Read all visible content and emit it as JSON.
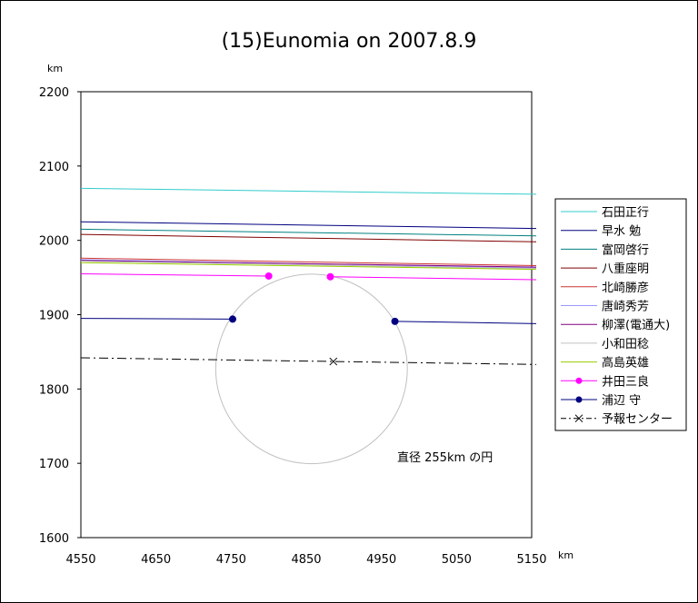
{
  "chart_data": {
    "type": "line",
    "title": "(15)Eunomia on 2007.8.9",
    "xlabel": "km",
    "ylabel": "km",
    "xlim": [
      4550,
      5150
    ],
    "ylim": [
      1600,
      2200
    ],
    "xticks": [
      "4550",
      "4650",
      "4750",
      "4850",
      "4950",
      "5050",
      "5150"
    ],
    "yticks": [
      "2200",
      "2100",
      "2000",
      "1900",
      "1800",
      "1700",
      "1600"
    ],
    "grid": false,
    "legend_position": "right",
    "annotation": "直径 255km の円",
    "series": [
      {
        "name": "石田正行",
        "color": "#33cccc",
        "style": "solid",
        "x": [
          4550,
          5160
        ],
        "y": [
          2070,
          2062
        ]
      },
      {
        "name": "早水 勉",
        "color": "#000080",
        "style": "solid",
        "x": [
          4550,
          5160
        ],
        "y": [
          2025,
          2016
        ]
      },
      {
        "name": "富岡啓行",
        "color": "#008080",
        "style": "solid",
        "x": [
          4550,
          5160
        ],
        "y": [
          2015,
          2006
        ]
      },
      {
        "name": "八重座明",
        "color": "#800000",
        "style": "solid",
        "x": [
          4550,
          5160
        ],
        "y": [
          2008,
          1998
        ]
      },
      {
        "name": "北崎勝彦",
        "color": "#cc3333",
        "style": "solid",
        "x": [
          4550,
          5160
        ],
        "y": [
          1976,
          1966
        ]
      },
      {
        "name": "唐崎秀芳",
        "color": "#9999ff",
        "style": "solid",
        "x": [
          4550,
          5160
        ],
        "y": [
          1974,
          1963
        ]
      },
      {
        "name": "柳澤(電通大)",
        "color": "#800080",
        "style": "solid",
        "x": [
          4550,
          5160
        ],
        "y": [
          1973,
          1964
        ]
      },
      {
        "name": "小和田稔",
        "color": "#c0c0c0",
        "style": "solid",
        "x": [
          4550,
          5160
        ],
        "y": [
          1972,
          1962
        ]
      },
      {
        "name": "高島英雄",
        "color": "#99cc00",
        "style": "solid",
        "x": [
          4550,
          5160
        ],
        "y": [
          1970,
          1961
        ]
      },
      {
        "name": "井田三良",
        "color": "#ff00ff",
        "style": "solid",
        "markers": [
          0,
          1
        ],
        "x": [
          4800,
          4882,
          4550,
          5160
        ],
        "y": [
          1952,
          1951,
          1955,
          1947
        ],
        "segments": [
          [
            4550,
            1955,
            4800,
            1952
          ],
          [
            4882,
            1951,
            5160,
            1947
          ]
        ]
      },
      {
        "name": "浦辺 守",
        "color": "#000080",
        "style": "solid",
        "markers": [
          0,
          1
        ],
        "x": [
          4752,
          4968
        ],
        "y": [
          1894,
          1891
        ],
        "segments": [
          [
            4550,
            1895,
            4752,
            1894
          ],
          [
            4968,
            1891,
            5160,
            1888
          ]
        ]
      },
      {
        "name": "予報センター",
        "color": "#000000",
        "style": "dashdot",
        "x": [
          4550,
          5160
        ],
        "y": [
          1842,
          1833
        ],
        "center": [
          4886,
          1837
        ]
      }
    ],
    "circle": {
      "center": [
        4857,
        1827
      ],
      "diameter_km": 255,
      "color": "#c0c0c0"
    }
  }
}
